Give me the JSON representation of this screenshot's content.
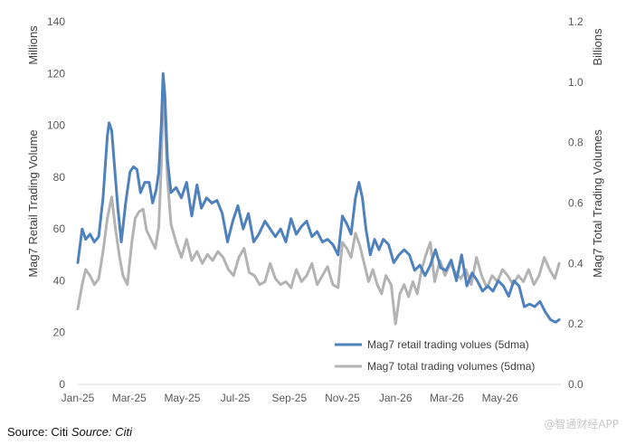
{
  "chart_data": {
    "type": "line",
    "title": "",
    "x_tick_labels": [
      "Jan-25",
      "Mar-25",
      "May-25",
      "Jul-25",
      "Sep-25",
      "Nov-25",
      "Jan-26",
      "Mar-26",
      "May-26"
    ],
    "x_range": [
      "2025-01-01",
      "2026-07-10"
    ],
    "y_left": {
      "label": "Mag7 Retail Trading Volume",
      "unit": "Millions",
      "range": [
        0,
        140
      ],
      "ticks": [
        "0",
        "20",
        "40",
        "60",
        "80",
        "100",
        "120",
        "140"
      ]
    },
    "y_right": {
      "label": "Mag7 Total Trading Volumes",
      "unit": "Billions",
      "range": [
        0,
        1.2
      ],
      "ticks": [
        "0.0",
        "0.2",
        "0.4",
        "0.6",
        "0.8",
        "1.0",
        "1.2"
      ]
    },
    "grid": false,
    "legend_position": "bottom-right",
    "series": [
      {
        "name": "Mag7 retail trading volues (5dma)",
        "axis": "left",
        "color": "#4f81bd",
        "x": [
          "2025-01-01",
          "2025-01-06",
          "2025-01-10",
          "2025-01-15",
          "2025-01-20",
          "2025-01-25",
          "2025-01-30",
          "2025-02-04",
          "2025-02-06",
          "2025-02-09",
          "2025-02-12",
          "2025-02-16",
          "2025-02-20",
          "2025-02-25",
          "2025-03-02",
          "2025-03-06",
          "2025-03-10",
          "2025-03-14",
          "2025-03-19",
          "2025-03-24",
          "2025-03-28",
          "2025-04-01",
          "2025-04-04",
          "2025-04-07",
          "2025-04-09",
          "2025-04-11",
          "2025-04-14",
          "2025-04-18",
          "2025-04-24",
          "2025-04-30",
          "2025-05-06",
          "2025-05-12",
          "2025-05-18",
          "2025-05-23",
          "2025-05-29",
          "2025-06-04",
          "2025-06-10",
          "2025-06-16",
          "2025-06-22",
          "2025-06-28",
          "2025-07-04",
          "2025-07-10",
          "2025-07-16",
          "2025-07-22",
          "2025-07-28",
          "2025-08-04",
          "2025-08-10",
          "2025-08-16",
          "2025-08-22",
          "2025-08-28",
          "2025-09-03",
          "2025-09-09",
          "2025-09-15",
          "2025-09-21",
          "2025-09-27",
          "2025-10-03",
          "2025-10-09",
          "2025-10-15",
          "2025-10-21",
          "2025-10-27",
          "2025-11-01",
          "2025-11-06",
          "2025-11-11",
          "2025-11-16",
          "2025-11-20",
          "2025-11-24",
          "2025-11-28",
          "2025-12-03",
          "2025-12-08",
          "2025-12-13",
          "2025-12-18",
          "2025-12-24",
          "2025-12-30",
          "2026-01-05",
          "2026-01-11",
          "2026-01-17",
          "2026-01-23",
          "2026-01-29",
          "2026-02-04",
          "2026-02-10",
          "2026-02-16",
          "2026-02-22",
          "2026-02-28",
          "2026-03-06",
          "2026-03-12",
          "2026-03-18",
          "2026-03-24",
          "2026-03-30",
          "2026-04-05",
          "2026-04-11",
          "2026-04-17",
          "2026-04-23",
          "2026-04-29",
          "2026-05-05",
          "2026-05-11",
          "2026-05-17",
          "2026-05-23",
          "2026-05-29",
          "2026-06-04",
          "2026-06-10",
          "2026-06-16",
          "2026-06-22",
          "2026-06-28",
          "2026-07-04",
          "2026-07-08"
        ],
        "values": [
          47,
          60,
          56,
          58,
          55,
          57,
          72,
          96,
          101,
          98,
          85,
          68,
          55,
          70,
          82,
          84,
          83,
          74,
          78,
          78,
          70,
          75,
          82,
          101,
          120,
          112,
          87,
          74,
          76,
          72,
          78,
          65,
          77,
          68,
          72,
          70,
          71,
          66,
          55,
          63,
          69,
          60,
          66,
          55,
          58,
          63,
          60,
          57,
          60,
          55,
          64,
          58,
          61,
          63,
          57,
          59,
          55,
          56,
          54,
          50,
          65,
          62,
          58,
          72,
          78,
          72,
          60,
          50,
          56,
          52,
          56,
          54,
          47,
          50,
          52,
          50,
          44,
          46,
          42,
          46,
          52,
          45,
          44,
          48,
          40,
          50,
          38,
          43,
          40,
          36,
          38,
          36,
          40,
          38,
          34,
          40,
          38,
          30,
          31,
          30,
          32,
          28,
          25,
          24,
          25
        ]
      },
      {
        "name": "Mag7 total trading volumes (5dma)",
        "axis": "right",
        "color": "#b3b3b3",
        "x": [
          "2025-01-01",
          "2025-01-06",
          "2025-01-10",
          "2025-01-15",
          "2025-01-20",
          "2025-01-25",
          "2025-01-30",
          "2025-02-04",
          "2025-02-09",
          "2025-02-13",
          "2025-02-18",
          "2025-02-22",
          "2025-02-27",
          "2025-03-04",
          "2025-03-08",
          "2025-03-12",
          "2025-03-17",
          "2025-03-21",
          "2025-03-26",
          "2025-03-31",
          "2025-04-04",
          "2025-04-07",
          "2025-04-09",
          "2025-04-11",
          "2025-04-14",
          "2025-04-18",
          "2025-04-24",
          "2025-04-30",
          "2025-05-06",
          "2025-05-12",
          "2025-05-18",
          "2025-05-24",
          "2025-05-30",
          "2025-06-05",
          "2025-06-11",
          "2025-06-17",
          "2025-06-23",
          "2025-06-29",
          "2025-07-05",
          "2025-07-11",
          "2025-07-17",
          "2025-07-23",
          "2025-07-29",
          "2025-08-04",
          "2025-08-10",
          "2025-08-16",
          "2025-08-22",
          "2025-08-28",
          "2025-09-03",
          "2025-09-09",
          "2025-09-15",
          "2025-09-21",
          "2025-09-27",
          "2025-10-03",
          "2025-10-09",
          "2025-10-15",
          "2025-10-21",
          "2025-10-27",
          "2025-11-01",
          "2025-11-06",
          "2025-11-11",
          "2025-11-16",
          "2025-11-21",
          "2025-11-26",
          "2025-12-01",
          "2025-12-06",
          "2025-12-11",
          "2025-12-16",
          "2025-12-21",
          "2025-12-27",
          "2026-01-01",
          "2026-01-06",
          "2026-01-11",
          "2026-01-16",
          "2026-01-21",
          "2026-01-26",
          "2026-01-31",
          "2026-02-05",
          "2026-02-10",
          "2026-02-15",
          "2026-02-21",
          "2026-02-27",
          "2026-03-05",
          "2026-03-11",
          "2026-03-17",
          "2026-03-23",
          "2026-03-29",
          "2026-04-04",
          "2026-04-10",
          "2026-04-16",
          "2026-04-22",
          "2026-04-28",
          "2026-05-04",
          "2026-05-10",
          "2026-05-16",
          "2026-05-22",
          "2026-05-28",
          "2026-06-03",
          "2026-06-09",
          "2026-06-15",
          "2026-06-21",
          "2026-06-27",
          "2026-07-03",
          "2026-07-08"
        ],
        "values": [
          0.25,
          0.33,
          0.38,
          0.36,
          0.33,
          0.35,
          0.44,
          0.55,
          0.62,
          0.52,
          0.42,
          0.36,
          0.33,
          0.47,
          0.55,
          0.57,
          0.58,
          0.51,
          0.48,
          0.45,
          0.52,
          0.73,
          0.97,
          0.9,
          0.68,
          0.53,
          0.47,
          0.42,
          0.48,
          0.41,
          0.44,
          0.4,
          0.43,
          0.41,
          0.44,
          0.42,
          0.38,
          0.36,
          0.42,
          0.45,
          0.37,
          0.36,
          0.33,
          0.34,
          0.4,
          0.35,
          0.33,
          0.34,
          0.32,
          0.38,
          0.34,
          0.36,
          0.4,
          0.33,
          0.36,
          0.39,
          0.33,
          0.32,
          0.47,
          0.45,
          0.42,
          0.5,
          0.46,
          0.4,
          0.34,
          0.38,
          0.33,
          0.3,
          0.36,
          0.33,
          0.2,
          0.3,
          0.33,
          0.29,
          0.34,
          0.3,
          0.38,
          0.43,
          0.47,
          0.34,
          0.41,
          0.36,
          0.4,
          0.37,
          0.35,
          0.38,
          0.33,
          0.42,
          0.36,
          0.32,
          0.36,
          0.34,
          0.38,
          0.36,
          0.33,
          0.36,
          0.34,
          0.38,
          0.33,
          0.36,
          0.42,
          0.38,
          0.35,
          0.4
        ]
      }
    ]
  },
  "footer": {
    "source_label": "Source: Citi",
    "source_italic": "Source: Citi",
    "watermark": "@智通财经APP"
  }
}
